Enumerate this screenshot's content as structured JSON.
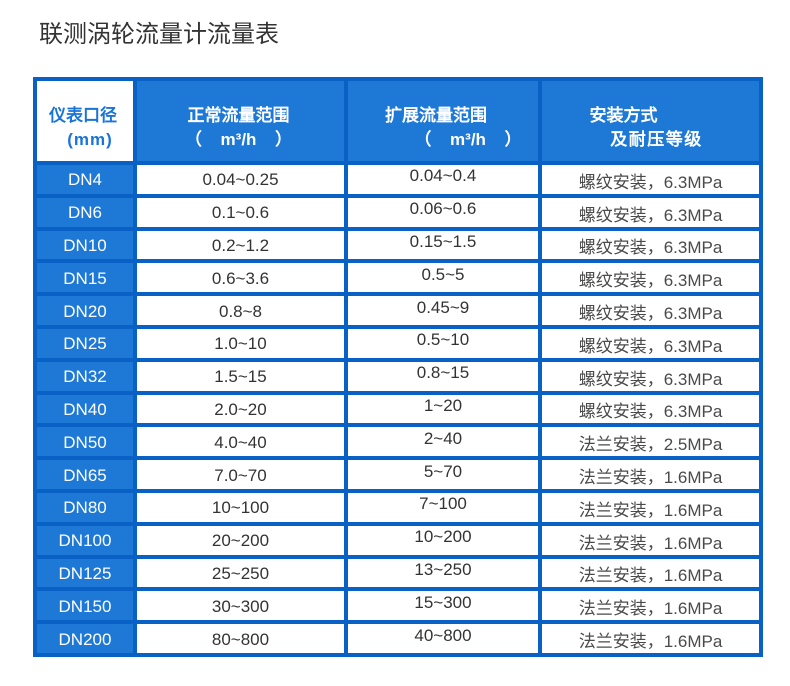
{
  "page": {
    "title": "联测涡轮流量计流量表"
  },
  "colors": {
    "border_blue": "#0961c6",
    "cell_blue": "#1e78d6",
    "header_text": "#ffffff",
    "diameter_header_text": "#1a74d8",
    "body_text": "#333333"
  },
  "table": {
    "headers": [
      {
        "line1": "仪表口径",
        "line2": "(mm)"
      },
      {
        "line1": "正常流量范围",
        "line2": "（ m³/h ）"
      },
      {
        "line1": "扩展流量范围",
        "line2": "（ m³/h ）"
      },
      {
        "line1": "安装方式",
        "line2": "及耐压等级"
      }
    ],
    "rows": [
      {
        "dn": "DN4",
        "normal": "0.04~0.25",
        "extended": "0.04~0.4",
        "install": "螺纹安装，6.3MPa"
      },
      {
        "dn": "DN6",
        "normal": "0.1~0.6",
        "extended": "0.06~0.6",
        "install": "螺纹安装，6.3MPa"
      },
      {
        "dn": "DN10",
        "normal": "0.2~1.2",
        "extended": "0.15~1.5",
        "install": "螺纹安装，6.3MPa"
      },
      {
        "dn": "DN15",
        "normal": "0.6~3.6",
        "extended": "0.5~5",
        "install": "螺纹安装，6.3MPa"
      },
      {
        "dn": "DN20",
        "normal": "0.8~8",
        "extended": "0.45~9",
        "install": "螺纹安装，6.3MPa"
      },
      {
        "dn": "DN25",
        "normal": "1.0~10",
        "extended": "0.5~10",
        "install": "螺纹安装，6.3MPa"
      },
      {
        "dn": "DN32",
        "normal": "1.5~15",
        "extended": "0.8~15",
        "install": "螺纹安装，6.3MPa"
      },
      {
        "dn": "DN40",
        "normal": "2.0~20",
        "extended": "1~20",
        "install": "螺纹安装，6.3MPa"
      },
      {
        "dn": "DN50",
        "normal": "4.0~40",
        "extended": "2~40",
        "install": "法兰安装，2.5MPa"
      },
      {
        "dn": "DN65",
        "normal": "7.0~70",
        "extended": "5~70",
        "install": "法兰安装，1.6MPa"
      },
      {
        "dn": "DN80",
        "normal": "10~100",
        "extended": "7~100",
        "install": "法兰安装，1.6MPa"
      },
      {
        "dn": "DN100",
        "normal": "20~200",
        "extended": "10~200",
        "install": "法兰安装，1.6MPa"
      },
      {
        "dn": "DN125",
        "normal": "25~250",
        "extended": "13~250",
        "install": "法兰安装，1.6MPa"
      },
      {
        "dn": "DN150",
        "normal": "30~300",
        "extended": "15~300",
        "install": "法兰安装，1.6MPa"
      },
      {
        "dn": "DN200",
        "normal": "80~800",
        "extended": "40~800",
        "install": "法兰安装，1.6MPa"
      }
    ]
  }
}
